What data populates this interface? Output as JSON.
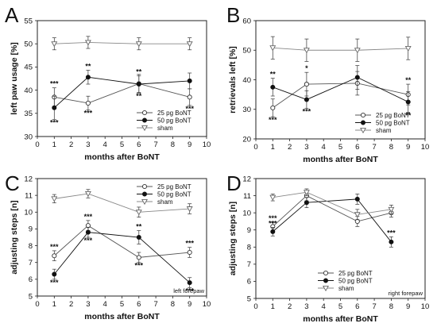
{
  "chart_data": [
    {
      "panel": "A",
      "type": "line",
      "xlabel": "months after BoNT",
      "ylabel": "left paw usage [%]",
      "xlim": [
        0,
        10
      ],
      "ylim": [
        30,
        55
      ],
      "xticks": [
        0,
        1,
        2,
        3,
        4,
        5,
        6,
        7,
        8,
        9,
        10
      ],
      "yticks": [
        30,
        35,
        40,
        45,
        50,
        55
      ],
      "grid": false,
      "legend_position": "bottom-right",
      "x": [
        1,
        3,
        6,
        9
      ],
      "series": [
        {
          "name": "25 pg BoNT",
          "marker": "open-circle",
          "color": "#555555",
          "values": [
            38.5,
            37.2,
            41.4,
            38.5
          ],
          "errors": [
            2.0,
            1.5,
            2.0,
            1.8
          ],
          "stars": [
            [
              "***",
              "above"
            ],
            [
              "***",
              "below"
            ],
            [
              "**",
              "below"
            ],
            [
              "***",
              "below"
            ]
          ]
        },
        {
          "name": "50 pg BoNT",
          "marker": "filled-circle",
          "color": "#111111",
          "values": [
            36.2,
            42.8,
            41.3,
            42.0
          ],
          "errors": [
            2.5,
            1.5,
            1.8,
            1.7
          ],
          "stars": [
            [
              "***",
              "below"
            ],
            [
              "**",
              "above"
            ],
            [
              "**",
              "above"
            ],
            [
              "",
              "above"
            ]
          ]
        },
        {
          "name": "sham",
          "marker": "open-triangle",
          "color": "#888888",
          "values": [
            50.0,
            50.3,
            50.0,
            50.0
          ],
          "errors": [
            1.3,
            1.3,
            1.3,
            1.3
          ],
          "stars": []
        }
      ]
    },
    {
      "panel": "B",
      "type": "line",
      "xlabel": "months after BoNT",
      "ylabel": "retrievals left [%]",
      "xlim": [
        0,
        10
      ],
      "ylim": [
        20,
        60
      ],
      "xticks": [
        0,
        1,
        2,
        3,
        4,
        5,
        6,
        7,
        8,
        9,
        10
      ],
      "yticks": [
        20,
        30,
        40,
        50,
        60
      ],
      "grid": false,
      "legend_position": "bottom-right",
      "x": [
        1,
        3,
        6,
        9
      ],
      "series": [
        {
          "name": "25 pg BoNT",
          "marker": "open-circle",
          "color": "#555555",
          "values": [
            30.5,
            38.5,
            38.8,
            35.0
          ],
          "errors": [
            3.0,
            4.0,
            4.0,
            3.5
          ],
          "stars": [
            [
              "***",
              "below"
            ],
            [
              "*",
              "above"
            ],
            [
              "",
              "above"
            ],
            [
              "**",
              "above"
            ]
          ]
        },
        {
          "name": "50 pg BoNT",
          "marker": "filled-circle",
          "color": "#111111",
          "values": [
            37.5,
            33.3,
            40.8,
            32.5
          ],
          "errors": [
            3.0,
            3.0,
            4.0,
            3.5
          ],
          "stars": [
            [
              "**",
              "above"
            ],
            [
              "***",
              "below"
            ],
            [
              "",
              "above"
            ],
            [
              "**",
              "below"
            ]
          ]
        },
        {
          "name": "sham",
          "marker": "open-triangle",
          "color": "#888888",
          "values": [
            50.8,
            50.0,
            50.0,
            50.6
          ],
          "errors": [
            3.8,
            3.8,
            3.8,
            3.8
          ],
          "stars": []
        }
      ]
    },
    {
      "panel": "C",
      "type": "line",
      "xlabel": "months after BoNT",
      "ylabel": "adjusting steps [n]",
      "xlim": [
        0,
        10
      ],
      "ylim": [
        5,
        12
      ],
      "xticks": [
        0,
        1,
        2,
        3,
        4,
        5,
        6,
        7,
        8,
        9,
        10
      ],
      "yticks": [
        5,
        6,
        7,
        8,
        9,
        10,
        11,
        12
      ],
      "grid": false,
      "legend_position": "top-right",
      "corner_note": "left forepaw",
      "x": [
        1,
        3,
        6,
        9
      ],
      "series": [
        {
          "name": "25 pg BoNT",
          "marker": "open-circle",
          "color": "#555555",
          "values": [
            7.4,
            9.2,
            7.3,
            7.6
          ],
          "errors": [
            0.3,
            0.3,
            0.3,
            0.3
          ],
          "stars": [
            [
              "***",
              "above"
            ],
            [
              "***",
              "above"
            ],
            [
              "***",
              "below"
            ],
            [
              "***",
              "above"
            ]
          ]
        },
        {
          "name": "50 pg BoNT",
          "marker": "filled-circle",
          "color": "#111111",
          "values": [
            6.3,
            8.8,
            8.5,
            5.8
          ],
          "errors": [
            0.3,
            0.3,
            0.4,
            0.3
          ],
          "stars": [
            [
              "***",
              "below"
            ],
            [
              "***",
              "below"
            ],
            [
              "**",
              "above"
            ],
            [
              "***",
              "below"
            ]
          ]
        },
        {
          "name": "sham",
          "marker": "open-triangle",
          "color": "#888888",
          "values": [
            10.8,
            11.1,
            10.0,
            10.2
          ],
          "errors": [
            0.25,
            0.25,
            0.3,
            0.3
          ],
          "stars": []
        }
      ]
    },
    {
      "panel": "D",
      "type": "line",
      "xlabel": "months after BoNT",
      "ylabel": "adjusting steps [n]",
      "xlim": [
        0,
        10
      ],
      "ylim": [
        5,
        12
      ],
      "xticks": [
        0,
        1,
        2,
        3,
        4,
        5,
        6,
        7,
        8,
        9,
        10
      ],
      "yticks": [
        5,
        6,
        7,
        8,
        9,
        10,
        11,
        12
      ],
      "grid": false,
      "legend_position": "bottom-left",
      "corner_note": "right forepaw",
      "x": [
        1,
        3,
        6,
        8
      ],
      "series": [
        {
          "name": "25 pg BoNT",
          "marker": "open-circle",
          "color": "#555555",
          "values": [
            9.2,
            11.0,
            9.5,
            10.0
          ],
          "errors": [
            0.25,
            0.3,
            0.3,
            0.25
          ],
          "stars": [
            [
              "***",
              "above"
            ],
            [
              "",
              "above"
            ],
            [
              "",
              "above"
            ],
            [
              "",
              "above"
            ]
          ]
        },
        {
          "name": "50 pg BoNT",
          "marker": "filled-circle",
          "color": "#111111",
          "values": [
            8.9,
            10.6,
            10.8,
            8.3
          ],
          "errors": [
            0.25,
            0.3,
            0.3,
            0.3
          ],
          "stars": [
            [
              "***",
              "above"
            ],
            [
              "",
              "above"
            ],
            [
              "",
              "above"
            ],
            [
              "***",
              "above"
            ]
          ]
        },
        {
          "name": "sham",
          "marker": "open-triangle",
          "color": "#888888",
          "values": [
            10.9,
            11.2,
            9.9,
            10.2
          ],
          "errors": [
            0.2,
            0.2,
            0.3,
            0.25
          ],
          "stars": []
        }
      ]
    }
  ]
}
